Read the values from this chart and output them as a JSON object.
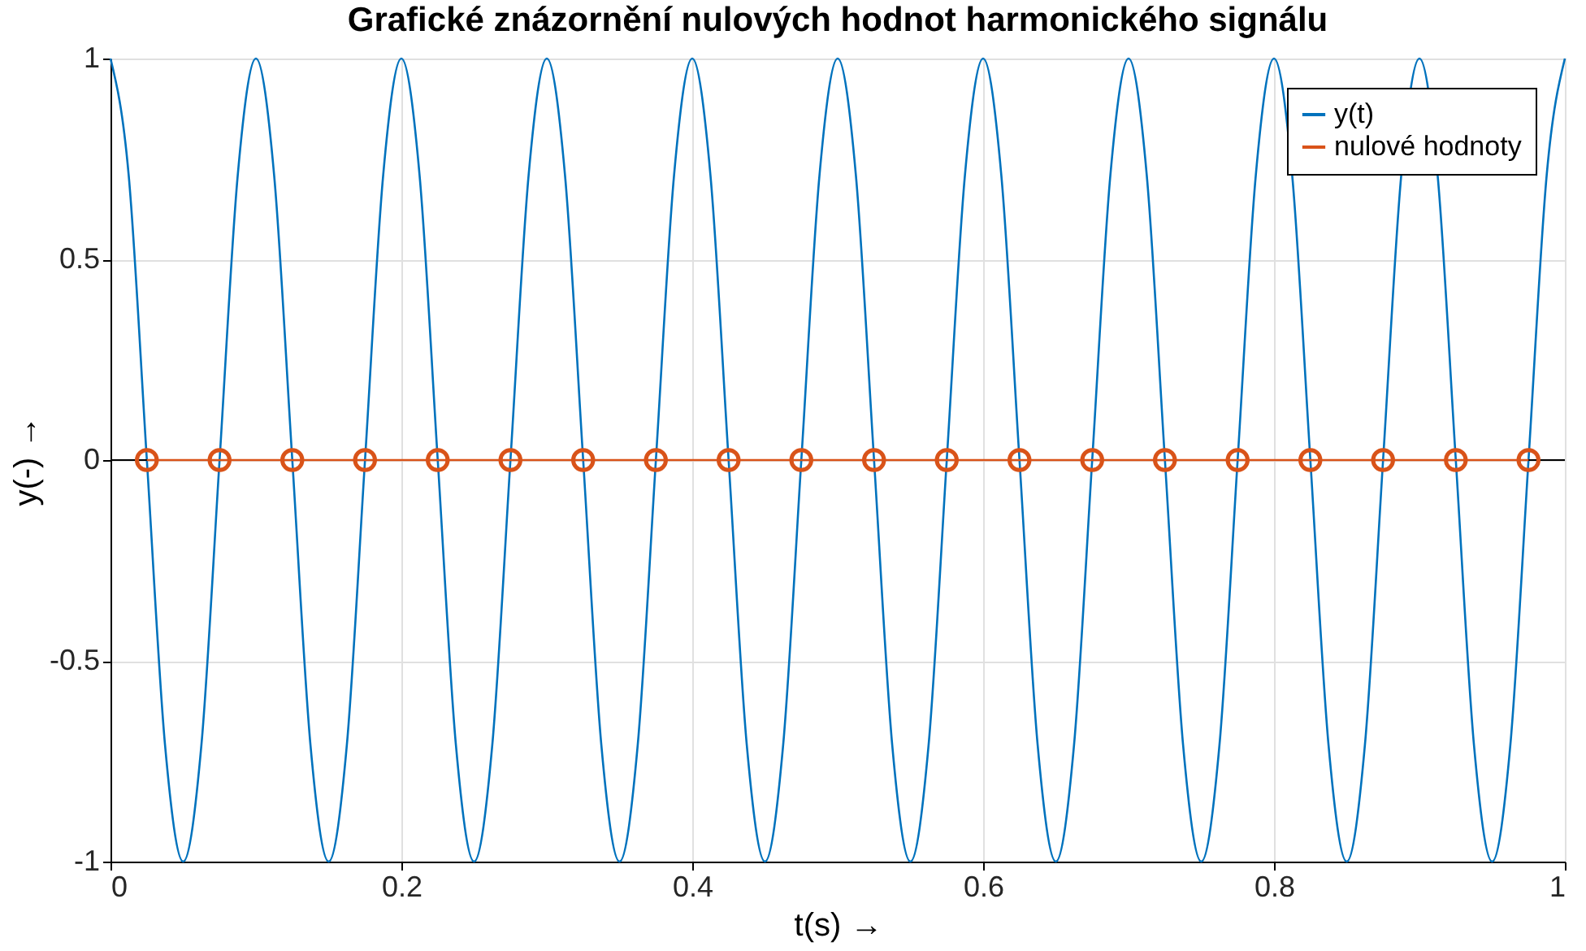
{
  "chart_data": {
    "type": "line",
    "title": "Grafické znázornění nulových hodnot harmonického signálu",
    "xlabel": "t(s)  →",
    "ylabel": "y(-)  →",
    "xlim": [
      0,
      1
    ],
    "ylim": [
      -1,
      1
    ],
    "xticks": [
      0,
      0.2,
      0.4,
      0.6,
      0.8,
      1
    ],
    "yticks": [
      -1,
      -0.5,
      0,
      0.5,
      1
    ],
    "grid": true,
    "legend": "top right",
    "ref_lines": [
      {
        "axis": "y",
        "value": 0,
        "color": "#000000"
      }
    ],
    "series": [
      {
        "name": "y(t)",
        "type": "line",
        "color": "#0072bd",
        "marker": "none",
        "x": [
          0,
          0.0125,
          0.025,
          0.0375,
          0.05,
          0.0625,
          0.075,
          0.0875,
          0.1,
          0.1125,
          0.125,
          0.1375,
          0.15,
          0.1625,
          0.175,
          0.1875,
          0.2,
          0.2125,
          0.225,
          0.2375,
          0.25,
          0.2625,
          0.275,
          0.2875,
          0.3,
          0.3125,
          0.325,
          0.3375,
          0.35,
          0.3625,
          0.375,
          0.3875,
          0.4,
          0.4125,
          0.425,
          0.4375,
          0.45,
          0.4625,
          0.475,
          0.4875,
          0.5,
          0.5125,
          0.525,
          0.5375,
          0.55,
          0.5625,
          0.575,
          0.5875,
          0.6,
          0.6125,
          0.625,
          0.6375,
          0.65,
          0.6625,
          0.675,
          0.6875,
          0.7,
          0.7125,
          0.725,
          0.7375,
          0.75,
          0.7625,
          0.775,
          0.7875,
          0.8,
          0.8125,
          0.825,
          0.8375,
          0.85,
          0.8625,
          0.875,
          0.8875,
          0.9,
          0.9125,
          0.925,
          0.9375,
          0.95,
          0.9625,
          0.975,
          0.9875,
          1
        ],
        "values": [
          1,
          0.71,
          0,
          -0.71,
          -1,
          -0.71,
          0,
          0.71,
          1,
          0.71,
          0,
          -0.71,
          -1,
          -0.71,
          0,
          0.71,
          1,
          0.71,
          0,
          -0.71,
          -1,
          -0.71,
          0,
          0.71,
          1,
          0.71,
          0,
          -0.71,
          -1,
          -0.71,
          0,
          0.71,
          1,
          0.71,
          0,
          -0.71,
          -1,
          -0.71,
          0,
          0.71,
          1,
          0.71,
          0,
          -0.71,
          -1,
          -0.71,
          0,
          0.71,
          1,
          0.71,
          0,
          -0.71,
          -1,
          -0.71,
          0,
          0.71,
          1,
          0.71,
          0,
          -0.71,
          -1,
          -0.71,
          0,
          0.71,
          1,
          0.71,
          0,
          -0.71,
          -1,
          -0.71,
          0,
          0.71,
          1,
          0.71,
          0,
          -0.71,
          -1,
          -0.71,
          0,
          0.71,
          1
        ]
      },
      {
        "name": "nulové hodnoty",
        "type": "line",
        "color": "#d95319",
        "marker": "circle",
        "x": [
          0.025,
          0.075,
          0.125,
          0.175,
          0.225,
          0.275,
          0.325,
          0.375,
          0.425,
          0.475,
          0.525,
          0.575,
          0.625,
          0.675,
          0.725,
          0.775,
          0.825,
          0.875,
          0.925,
          0.975
        ],
        "values": [
          0,
          0,
          0,
          0,
          0,
          0,
          0,
          0,
          0,
          0,
          0,
          0,
          0,
          0,
          0,
          0,
          0,
          0,
          0,
          0
        ]
      }
    ]
  }
}
